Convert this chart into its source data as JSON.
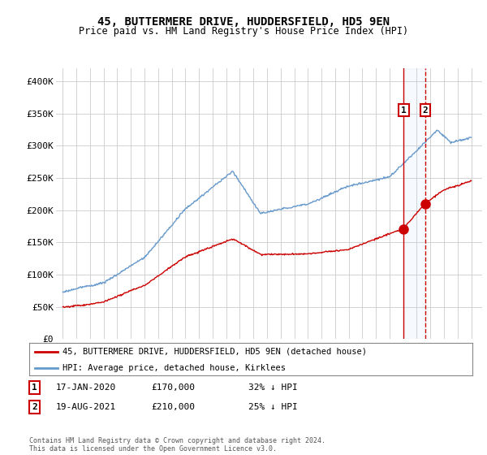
{
  "title": "45, BUTTERMERE DRIVE, HUDDERSFIELD, HD5 9EN",
  "subtitle": "Price paid vs. HM Land Registry's House Price Index (HPI)",
  "legend_line1": "45, BUTTERMERE DRIVE, HUDDERSFIELD, HD5 9EN (detached house)",
  "legend_line2": "HPI: Average price, detached house, Kirklees",
  "footer": "Contains HM Land Registry data © Crown copyright and database right 2024.\nThis data is licensed under the Open Government Licence v3.0.",
  "annotation1_date": "17-JAN-2020",
  "annotation1_price": "£170,000",
  "annotation1_hpi": "32% ↓ HPI",
  "annotation2_date": "19-AUG-2021",
  "annotation2_price": "£210,000",
  "annotation2_hpi": "25% ↓ HPI",
  "red_color": "#cc0000",
  "blue_color": "#6699cc",
  "background_color": "#ffffff",
  "grid_color": "#cccccc",
  "ylim": [
    0,
    420000
  ],
  "yticks": [
    0,
    50000,
    100000,
    150000,
    200000,
    250000,
    300000,
    350000,
    400000
  ],
  "ytick_labels": [
    "£0",
    "£50K",
    "£100K",
    "£150K",
    "£200K",
    "£250K",
    "£300K",
    "£350K",
    "£400K"
  ],
  "year_start": 1995,
  "year_end": 2025,
  "sale1_year": 2020.04,
  "sale1_price": 170000,
  "sale2_year": 2021.63,
  "sale2_price": 210000
}
